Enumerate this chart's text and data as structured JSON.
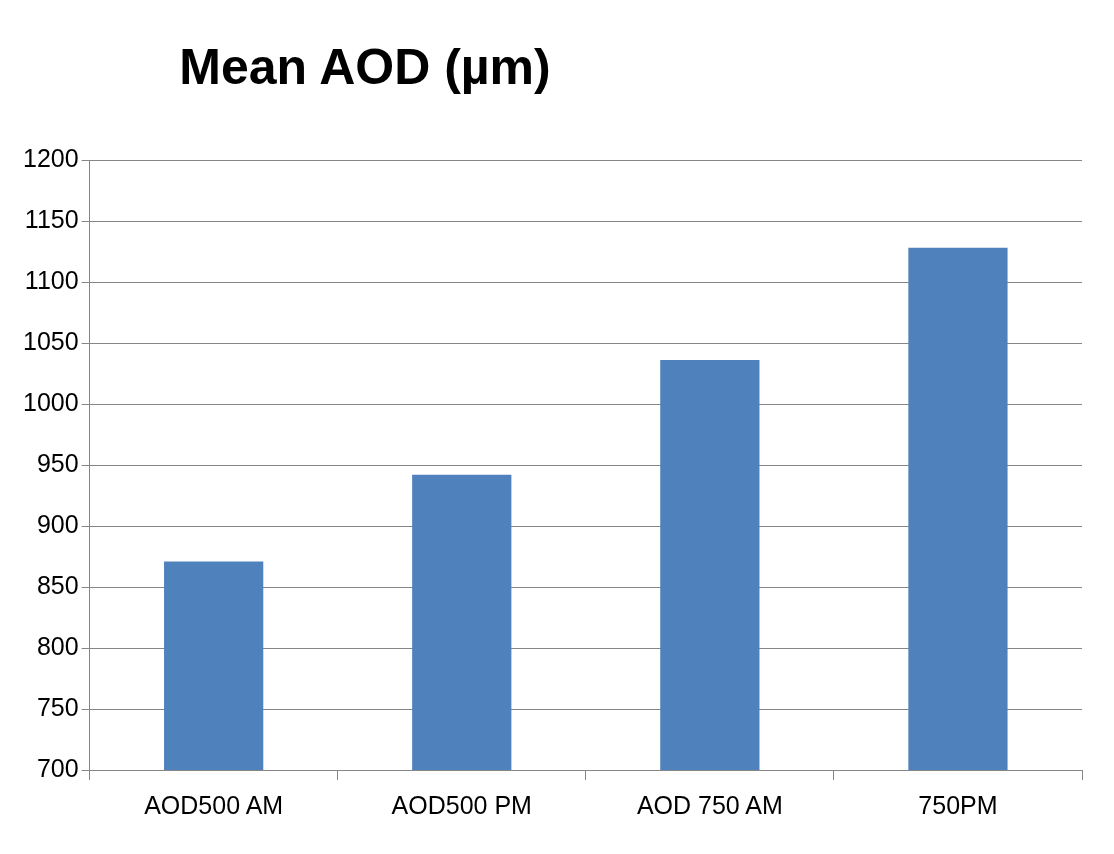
{
  "chart_data": {
    "type": "bar",
    "title": "Mean AOD (µm)",
    "categories": [
      "AOD500 AM",
      "AOD500 PM",
      "AOD 750 AM",
      "750PM"
    ],
    "values": [
      871,
      942,
      1036,
      1128
    ],
    "color": "#4f81bd",
    "ylim": [
      700,
      1200
    ],
    "yticks": [
      700,
      750,
      800,
      850,
      900,
      950,
      1000,
      1050,
      1100,
      1150,
      1200
    ],
    "grid": "y"
  }
}
